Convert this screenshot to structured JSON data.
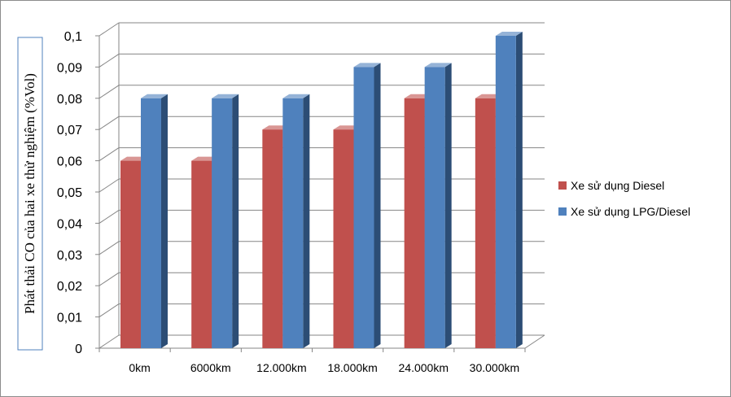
{
  "chart_data": {
    "type": "bar",
    "title": "",
    "xlabel": "",
    "ylabel": "Phát thải CO của hai xe thử nghiệm (%Vol)",
    "categories": [
      "0km",
      "6000km",
      "12.000km",
      "18.000km",
      "24.000km",
      "30.000km"
    ],
    "series": [
      {
        "name": "Xe sử dụng Diesel",
        "values": [
          0.06,
          0.06,
          0.07,
          0.07,
          0.08,
          0.08
        ]
      },
      {
        "name": "Xe sử dụng LPG/Diesel",
        "values": [
          0.08,
          0.08,
          0.08,
          0.09,
          0.09,
          0.1
        ]
      }
    ],
    "y_ticks": [
      "0",
      "0,01",
      "0,02",
      "0,03",
      "0,04",
      "0,05",
      "0,06",
      "0,07",
      "0,08",
      "0,09",
      "0,1"
    ],
    "ylim": [
      0,
      0.1
    ],
    "grid": true,
    "legend_position": "right",
    "colors": {
      "diesel_front": "#c0504d",
      "diesel_side": "#8b2f2d",
      "diesel_top": "#d99694",
      "lpg_front": "#4f81bd",
      "lpg_side": "#2c4d75",
      "lpg_top": "#95b3d7",
      "ylabel_border": "#4f81bd",
      "gridline": "#868686"
    }
  }
}
